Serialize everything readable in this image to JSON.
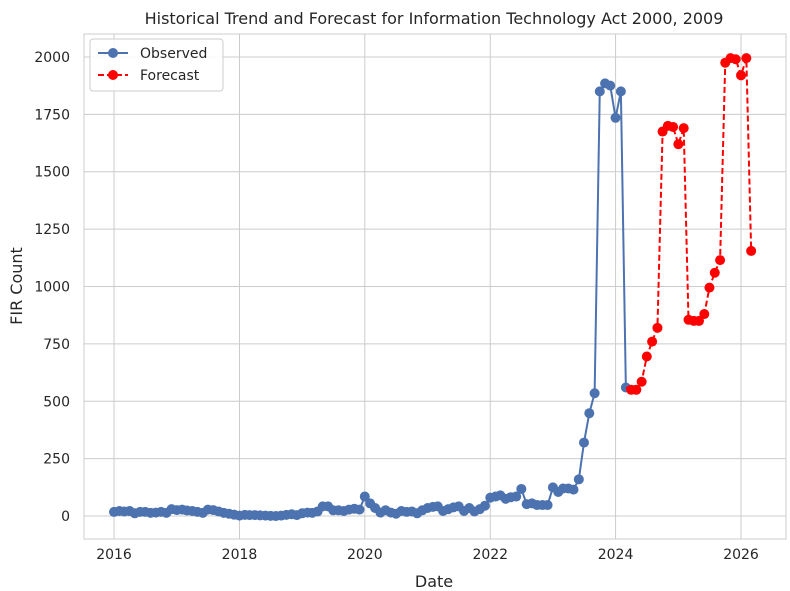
{
  "chart_data": {
    "type": "line",
    "title": "Historical Trend and Forecast for Information Technology Act 2000, 2009",
    "xlabel": "Date",
    "ylabel": "FIR Count",
    "x_axis_type": "date",
    "xlim": [
      "2015-07-10",
      "2026-09-20"
    ],
    "ylim": [
      -100,
      2100
    ],
    "x_ticks": [
      {
        "date": "2016-01-01",
        "label": "2016"
      },
      {
        "date": "2018-01-01",
        "label": "2018"
      },
      {
        "date": "2020-01-01",
        "label": "2020"
      },
      {
        "date": "2022-01-01",
        "label": "2022"
      },
      {
        "date": "2024-01-01",
        "label": "2024"
      },
      {
        "date": "2026-01-01",
        "label": "2026"
      }
    ],
    "y_ticks": [
      0,
      250,
      500,
      750,
      1000,
      1250,
      1500,
      1750,
      2000
    ],
    "grid": true,
    "legend_position": "top-left",
    "series": [
      {
        "name": "Observed",
        "color": "#4c72b0",
        "line_style": "solid",
        "marker": "circle",
        "points": [
          {
            "x": "2016-01",
            "y": 18
          },
          {
            "x": "2016-02",
            "y": 22
          },
          {
            "x": "2016-03",
            "y": 20
          },
          {
            "x": "2016-04",
            "y": 22
          },
          {
            "x": "2016-05",
            "y": 12
          },
          {
            "x": "2016-06",
            "y": 18
          },
          {
            "x": "2016-07",
            "y": 18
          },
          {
            "x": "2016-08",
            "y": 14
          },
          {
            "x": "2016-09",
            "y": 15
          },
          {
            "x": "2016-10",
            "y": 18
          },
          {
            "x": "2016-11",
            "y": 14
          },
          {
            "x": "2016-12",
            "y": 30
          },
          {
            "x": "2017-01",
            "y": 26
          },
          {
            "x": "2017-02",
            "y": 28
          },
          {
            "x": "2017-03",
            "y": 24
          },
          {
            "x": "2017-04",
            "y": 22
          },
          {
            "x": "2017-05",
            "y": 18
          },
          {
            "x": "2017-06",
            "y": 14
          },
          {
            "x": "2017-07",
            "y": 28
          },
          {
            "x": "2017-08",
            "y": 26
          },
          {
            "x": "2017-09",
            "y": 20
          },
          {
            "x": "2017-10",
            "y": 14
          },
          {
            "x": "2017-11",
            "y": 10
          },
          {
            "x": "2017-12",
            "y": 6
          },
          {
            "x": "2018-01",
            "y": 2
          },
          {
            "x": "2018-02",
            "y": 5
          },
          {
            "x": "2018-03",
            "y": 4
          },
          {
            "x": "2018-04",
            "y": 4
          },
          {
            "x": "2018-05",
            "y": 3
          },
          {
            "x": "2018-06",
            "y": 2
          },
          {
            "x": "2018-07",
            "y": 1
          },
          {
            "x": "2018-08",
            "y": 0
          },
          {
            "x": "2018-09",
            "y": 2
          },
          {
            "x": "2018-10",
            "y": 5
          },
          {
            "x": "2018-11",
            "y": 8
          },
          {
            "x": "2018-12",
            "y": 4
          },
          {
            "x": "2019-01",
            "y": 12
          },
          {
            "x": "2019-02",
            "y": 15
          },
          {
            "x": "2019-03",
            "y": 14
          },
          {
            "x": "2019-04",
            "y": 20
          },
          {
            "x": "2019-05",
            "y": 42
          },
          {
            "x": "2019-06",
            "y": 42
          },
          {
            "x": "2019-07",
            "y": 25
          },
          {
            "x": "2019-08",
            "y": 25
          },
          {
            "x": "2019-09",
            "y": 22
          },
          {
            "x": "2019-10",
            "y": 28
          },
          {
            "x": "2019-11",
            "y": 32
          },
          {
            "x": "2019-12",
            "y": 28
          },
          {
            "x": "2020-01",
            "y": 85
          },
          {
            "x": "2020-02",
            "y": 55
          },
          {
            "x": "2020-03",
            "y": 35
          },
          {
            "x": "2020-04",
            "y": 15
          },
          {
            "x": "2020-05",
            "y": 25
          },
          {
            "x": "2020-06",
            "y": 15
          },
          {
            "x": "2020-07",
            "y": 10
          },
          {
            "x": "2020-08",
            "y": 22
          },
          {
            "x": "2020-09",
            "y": 18
          },
          {
            "x": "2020-10",
            "y": 20
          },
          {
            "x": "2020-11",
            "y": 12
          },
          {
            "x": "2020-12",
            "y": 25
          },
          {
            "x": "2021-01",
            "y": 35
          },
          {
            "x": "2021-02",
            "y": 40
          },
          {
            "x": "2021-03",
            "y": 42
          },
          {
            "x": "2021-04",
            "y": 22
          },
          {
            "x": "2021-05",
            "y": 30
          },
          {
            "x": "2021-06",
            "y": 38
          },
          {
            "x": "2021-07",
            "y": 42
          },
          {
            "x": "2021-08",
            "y": 22
          },
          {
            "x": "2021-09",
            "y": 35
          },
          {
            "x": "2021-10",
            "y": 20
          },
          {
            "x": "2021-11",
            "y": 30
          },
          {
            "x": "2021-12",
            "y": 45
          },
          {
            "x": "2022-01",
            "y": 80
          },
          {
            "x": "2022-02",
            "y": 85
          },
          {
            "x": "2022-03",
            "y": 90
          },
          {
            "x": "2022-04",
            "y": 75
          },
          {
            "x": "2022-05",
            "y": 82
          },
          {
            "x": "2022-06",
            "y": 85
          },
          {
            "x": "2022-07",
            "y": 118
          },
          {
            "x": "2022-08",
            "y": 52
          },
          {
            "x": "2022-09",
            "y": 55
          },
          {
            "x": "2022-10",
            "y": 48
          },
          {
            "x": "2022-11",
            "y": 48
          },
          {
            "x": "2022-12",
            "y": 48
          },
          {
            "x": "2023-01",
            "y": 125
          },
          {
            "x": "2023-02",
            "y": 105
          },
          {
            "x": "2023-03",
            "y": 120
          },
          {
            "x": "2023-04",
            "y": 120
          },
          {
            "x": "2023-05",
            "y": 115
          },
          {
            "x": "2023-06",
            "y": 160
          },
          {
            "x": "2023-07",
            "y": 320
          },
          {
            "x": "2023-08",
            "y": 448
          },
          {
            "x": "2023-09",
            "y": 535
          },
          {
            "x": "2023-10",
            "y": 1850
          },
          {
            "x": "2023-11",
            "y": 1885
          },
          {
            "x": "2023-12",
            "y": 1875
          },
          {
            "x": "2024-01",
            "y": 1735
          },
          {
            "x": "2024-02",
            "y": 1850
          },
          {
            "x": "2024-03",
            "y": 560
          }
        ]
      },
      {
        "name": "Forecast",
        "color": "#ff0000",
        "line_style": "dashed",
        "marker": "circle",
        "points": [
          {
            "x": "2024-04",
            "y": 550
          },
          {
            "x": "2024-05",
            "y": 550
          },
          {
            "x": "2024-06",
            "y": 585
          },
          {
            "x": "2024-07",
            "y": 695
          },
          {
            "x": "2024-08",
            "y": 760
          },
          {
            "x": "2024-09",
            "y": 820
          },
          {
            "x": "2024-10",
            "y": 1675
          },
          {
            "x": "2024-11",
            "y": 1700
          },
          {
            "x": "2024-12",
            "y": 1695
          },
          {
            "x": "2025-01",
            "y": 1620
          },
          {
            "x": "2025-02",
            "y": 1690
          },
          {
            "x": "2025-03",
            "y": 855
          },
          {
            "x": "2025-04",
            "y": 850
          },
          {
            "x": "2025-05",
            "y": 850
          },
          {
            "x": "2025-06",
            "y": 880
          },
          {
            "x": "2025-07",
            "y": 995
          },
          {
            "x": "2025-08",
            "y": 1060
          },
          {
            "x": "2025-09",
            "y": 1115
          },
          {
            "x": "2025-10",
            "y": 1975
          },
          {
            "x": "2025-11",
            "y": 1995
          },
          {
            "x": "2025-12",
            "y": 1990
          },
          {
            "x": "2026-01",
            "y": 1920
          },
          {
            "x": "2026-02",
            "y": 1995
          },
          {
            "x": "2026-03",
            "y": 1155
          }
        ]
      }
    ]
  }
}
